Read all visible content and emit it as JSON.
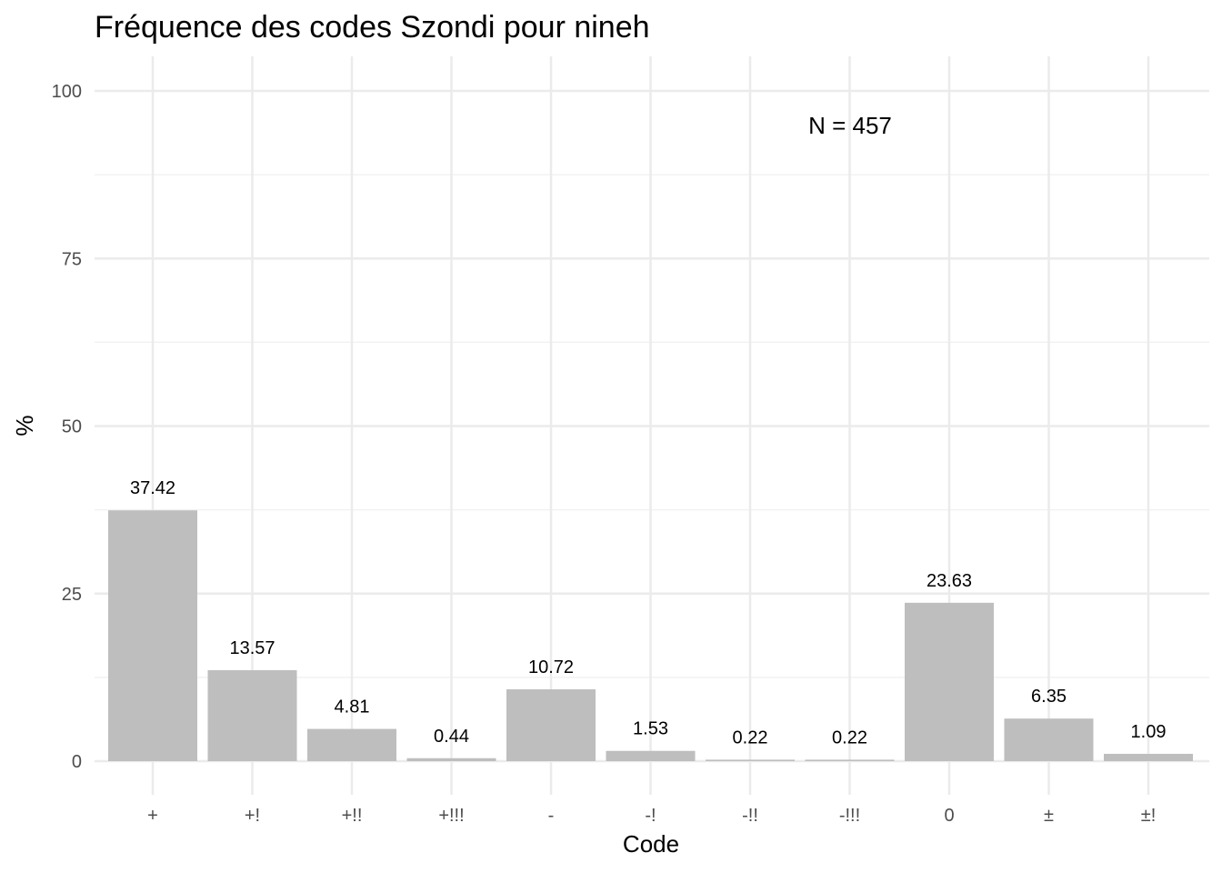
{
  "chart_data": {
    "type": "bar",
    "title": "Fréquence des codes Szondi pour nineh",
    "xlabel": "Code",
    "ylabel": "%",
    "categories": [
      "+",
      "+!",
      "+!!",
      "+!!!",
      "-",
      "-!",
      "-!!",
      "-!!!",
      "0",
      "±",
      "±!"
    ],
    "values": [
      37.42,
      13.57,
      4.81,
      0.44,
      10.72,
      1.53,
      0.22,
      0.22,
      23.63,
      6.35,
      1.09
    ],
    "value_labels": [
      "37.42",
      "13.57",
      "4.81",
      "0.44",
      "10.72",
      "1.53",
      "0.22",
      "0.22",
      "23.63",
      "6.35",
      "1.09"
    ],
    "ylim": [
      0,
      100
    ],
    "yticks": [
      0,
      25,
      50,
      75,
      100
    ],
    "ytick_labels": [
      "0",
      "25",
      "50",
      "75",
      "100"
    ],
    "annotation": "N = 457",
    "grid": true,
    "legend": "none",
    "bar_color": "#bebebe"
  }
}
